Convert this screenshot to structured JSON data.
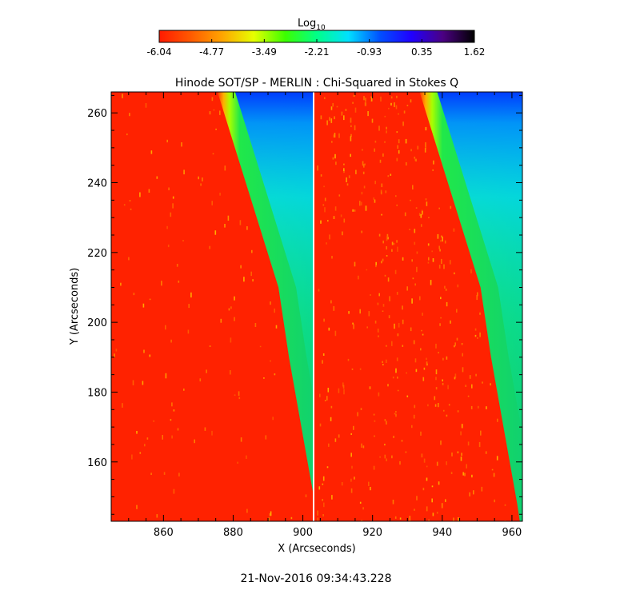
{
  "colorbar": {
    "label_base": "Log",
    "label_sub": "10",
    "colormap": [
      "#ff1a00",
      "#ff5a00",
      "#ffa500",
      "#e6ff00",
      "#3cff00",
      "#00ff88",
      "#00e0ff",
      "#0050ff",
      "#2000ff",
      "#4b0082",
      "#000000"
    ],
    "ticks": [
      "-6.04",
      "-4.77",
      "-3.49",
      "-2.21",
      "-0.93",
      "0.35",
      "1.62"
    ]
  },
  "footer": {
    "timestamp": "21-Nov-2016 09:34:43.228"
  },
  "chart_data": {
    "type": "heatmap",
    "title": "Hinode SOT/SP - MERLIN : Chi-Squared in Stokes Q",
    "xlabel": "X (Arcseconds)",
    "ylabel": "Y (Arcseconds)",
    "xlim": [
      845,
      963
    ],
    "ylim": [
      143,
      266
    ],
    "x_ticks": [
      "860",
      "880",
      "900",
      "920",
      "940",
      "960"
    ],
    "y_ticks": [
      "160",
      "180",
      "200",
      "220",
      "240",
      "260"
    ],
    "x_tick_values": [
      860,
      880,
      900,
      920,
      940,
      960
    ],
    "y_tick_values": [
      160,
      180,
      200,
      220,
      240,
      260
    ],
    "color_range": [
      -6.04,
      1.62
    ],
    "panels": [
      {
        "name": "left",
        "x_range": [
          845,
          904
        ],
        "limb": [
          [
            875.5,
            266
          ],
          [
            893,
            210
          ],
          [
            896,
            190
          ],
          [
            903.5,
            148
          ]
        ]
      },
      {
        "name": "right",
        "x_range": [
          904,
          963
        ],
        "limb": [
          [
            933.5,
            266
          ],
          [
            951,
            210
          ],
          [
            954,
            190
          ],
          [
            961.5,
            148
          ]
        ]
      }
    ]
  }
}
